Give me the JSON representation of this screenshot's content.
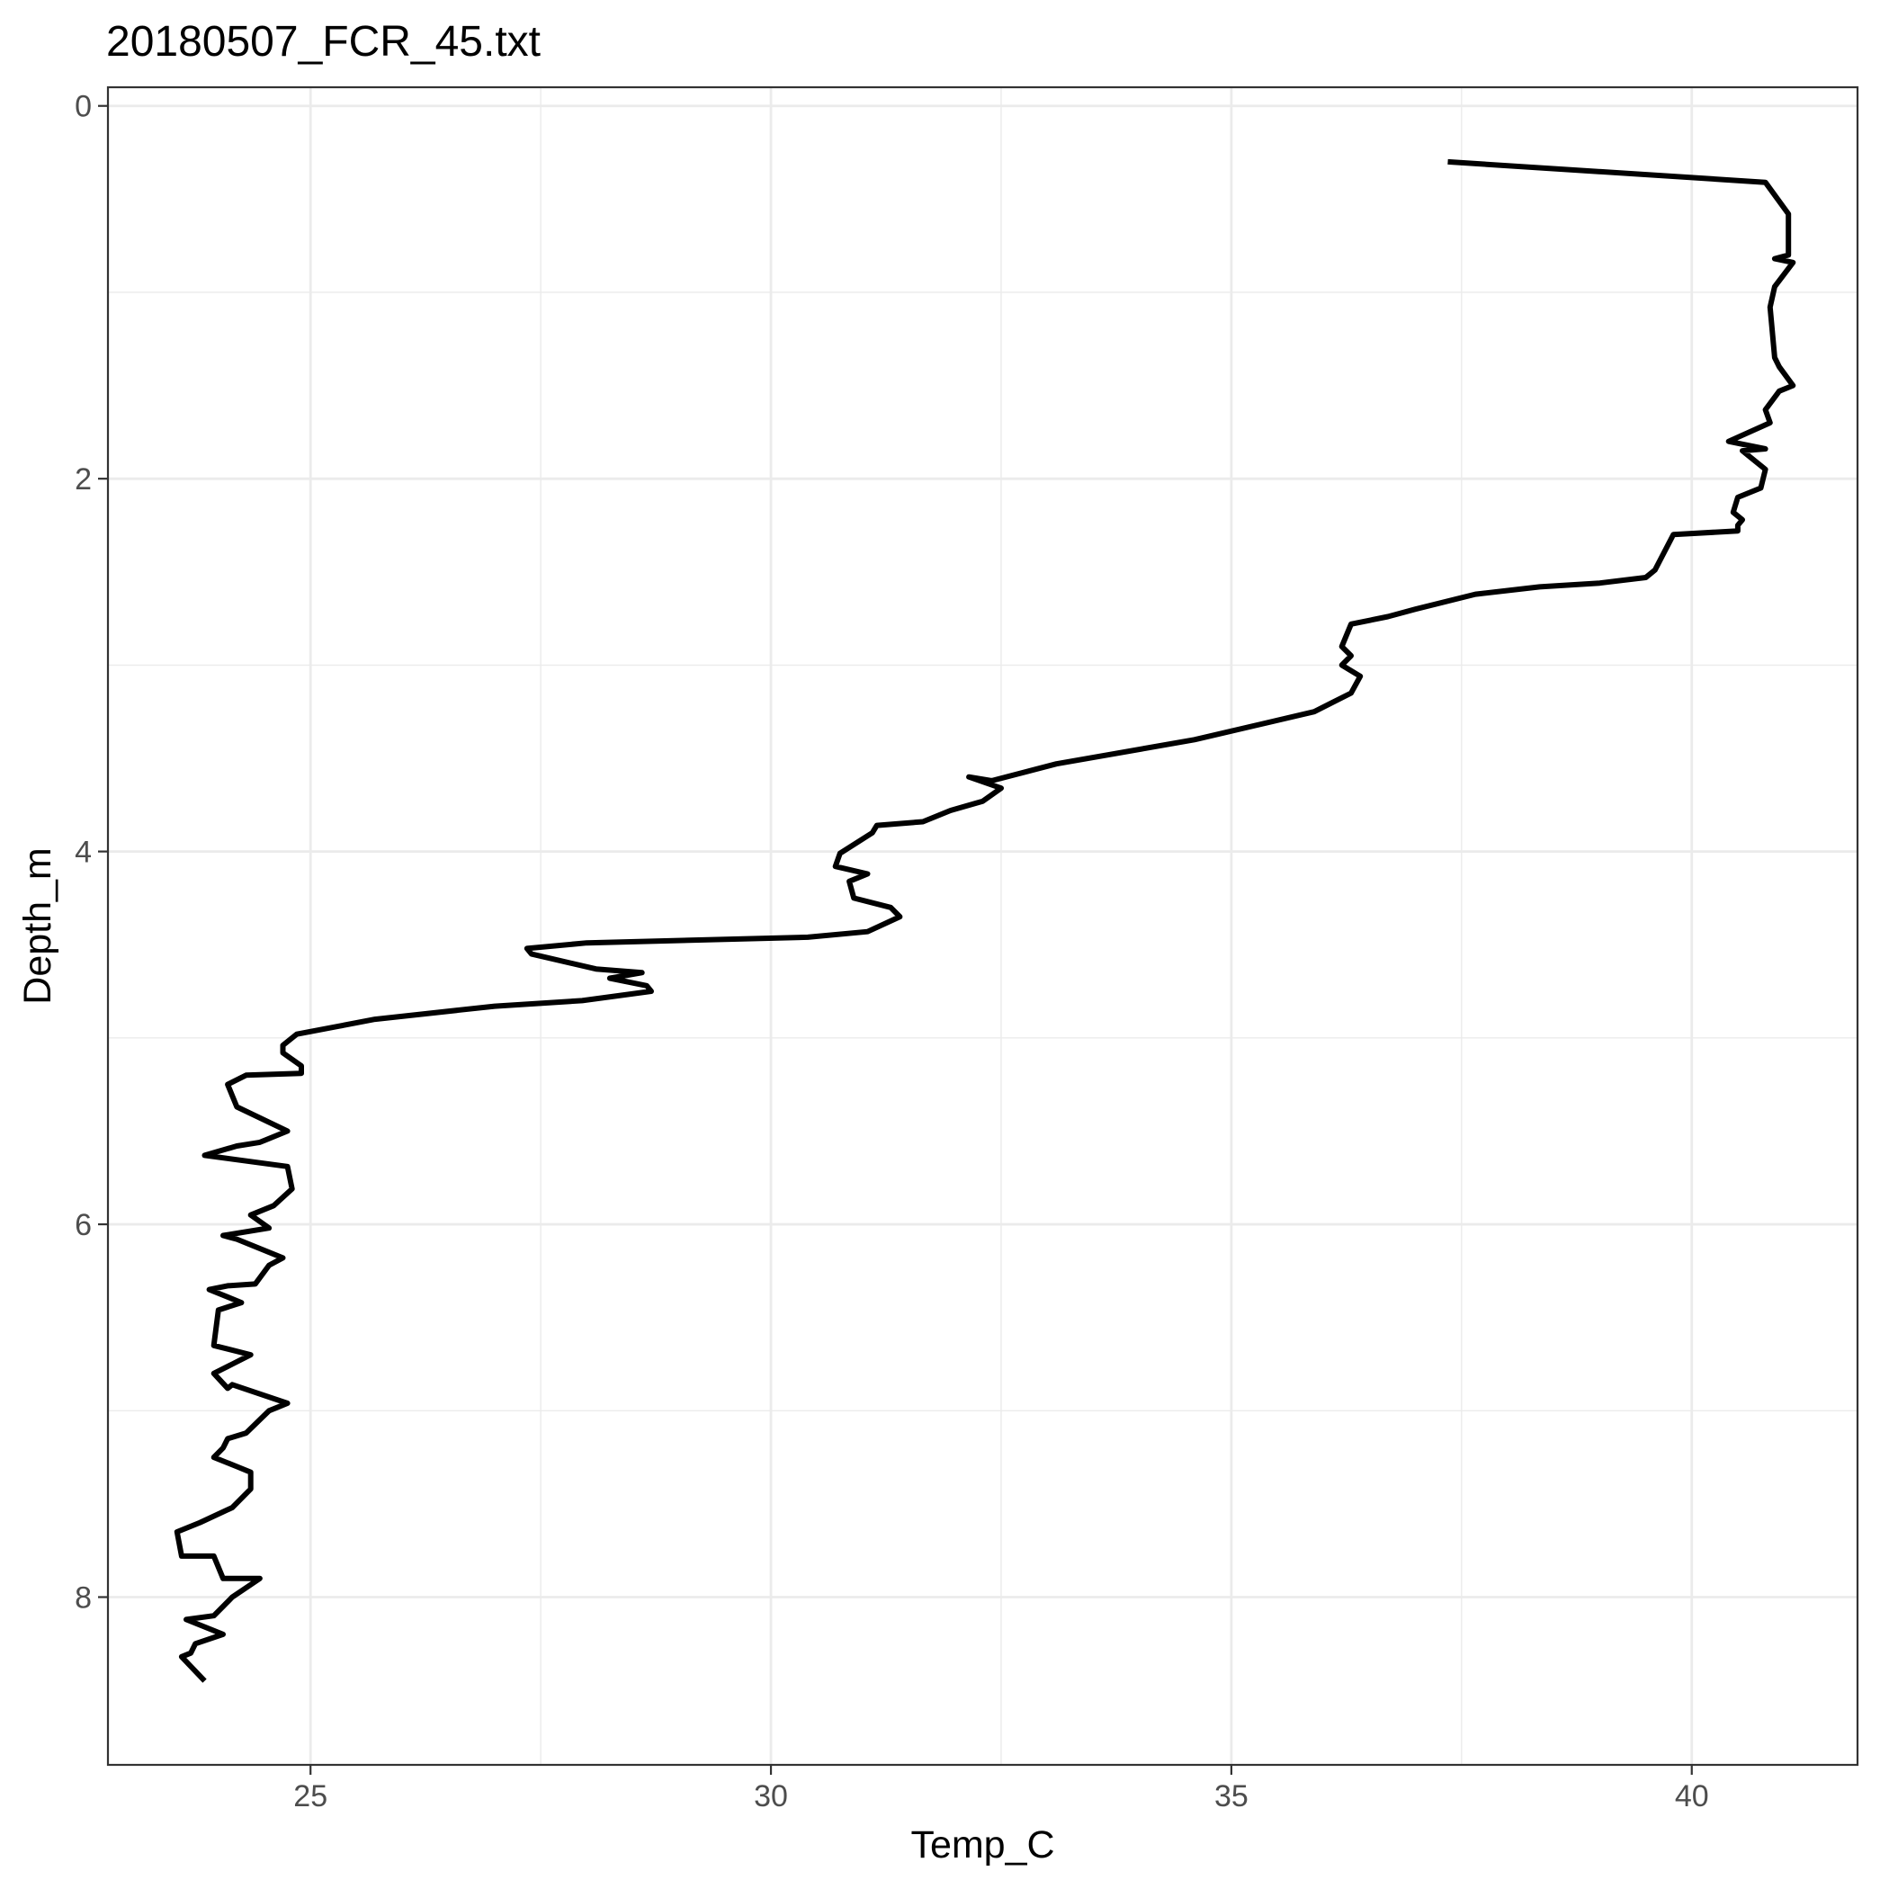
{
  "chart_data": {
    "type": "line",
    "title": "20180507_FCR_45.txt",
    "xlabel": "Temp_C",
    "ylabel": "Depth_m",
    "xlim": [
      22.8,
      41.8
    ],
    "ylim": [
      8.9,
      -0.1
    ],
    "y_reversed": true,
    "x_ticks": [
      25,
      30,
      35,
      40
    ],
    "x_tick_labels": [
      "25",
      "30",
      "35",
      "40"
    ],
    "y_ticks": [
      0,
      2,
      4,
      6,
      8
    ],
    "y_tick_labels": [
      "0",
      "2",
      "4",
      "6",
      "8"
    ],
    "grid": true,
    "legend": "none",
    "line_color": "#000000",
    "series": [
      {
        "x": [
          37.35,
          40.8,
          41.05,
          41.05,
          40.9,
          41.1,
          40.9,
          40.85,
          40.9,
          40.95,
          41.1,
          40.95,
          40.8,
          40.85,
          40.4,
          40.8,
          40.55,
          40.8,
          40.75,
          40.5,
          40.45,
          40.55,
          40.5,
          40.5,
          39.8,
          39.6,
          39.5,
          39.0,
          38.35,
          37.65,
          37.0,
          36.7,
          36.3,
          36.2,
          36.3,
          36.2,
          36.4,
          36.3,
          36.1,
          35.9,
          34.6,
          33.1,
          32.4,
          32.15,
          32.5,
          32.3,
          31.95,
          31.65,
          31.15,
          31.1,
          30.75,
          30.7,
          31.05,
          30.85,
          30.9,
          31.3,
          31.4,
          31.05,
          30.4,
          28.0,
          27.35,
          27.4,
          28.1,
          28.6,
          28.25,
          28.65,
          28.7,
          27.95,
          27.0,
          25.7,
          24.85,
          24.7,
          24.7,
          24.9,
          24.9,
          24.3,
          24.1,
          24.2,
          24.75,
          24.45,
          24.2,
          23.85,
          24.75,
          24.8,
          24.6,
          24.35,
          24.55,
          24.05,
          24.2,
          24.7,
          24.55,
          24.4,
          24.1,
          23.9,
          24.25,
          24.0,
          23.95,
          24.35,
          24.15,
          23.95,
          24.1,
          24.15,
          24.75,
          24.55,
          24.3,
          24.1,
          24.05,
          23.95,
          24.2,
          24.35,
          24.35,
          24.15,
          23.8,
          23.55,
          23.6,
          23.95,
          24.05,
          24.45,
          24.15,
          24.05,
          23.95,
          23.65,
          24.05,
          23.75,
          23.7,
          23.6,
          23.85
        ],
        "y": [
          0.3,
          0.41,
          0.58,
          0.8,
          0.82,
          0.84,
          0.97,
          1.08,
          1.35,
          1.4,
          1.5,
          1.53,
          1.63,
          1.7,
          1.8,
          1.84,
          1.85,
          1.95,
          2.05,
          2.1,
          2.18,
          2.22,
          2.25,
          2.28,
          2.3,
          2.49,
          2.53,
          2.56,
          2.58,
          2.62,
          2.7,
          2.74,
          2.78,
          2.9,
          2.95,
          3.0,
          3.06,
          3.15,
          3.2,
          3.25,
          3.4,
          3.53,
          3.62,
          3.6,
          3.66,
          3.73,
          3.78,
          3.84,
          3.86,
          3.9,
          4.01,
          4.08,
          4.12,
          4.16,
          4.25,
          4.3,
          4.35,
          4.43,
          4.46,
          4.49,
          4.52,
          4.55,
          4.63,
          4.65,
          4.68,
          4.72,
          4.75,
          4.8,
          4.83,
          4.9,
          4.98,
          5.04,
          5.08,
          5.15,
          5.19,
          5.2,
          5.25,
          5.37,
          5.5,
          5.56,
          5.58,
          5.63,
          5.69,
          5.81,
          5.9,
          5.95,
          6.02,
          6.06,
          6.08,
          6.18,
          6.22,
          6.32,
          6.33,
          6.35,
          6.42,
          6.46,
          6.65,
          6.7,
          6.75,
          6.8,
          6.88,
          6.86,
          6.96,
          7.0,
          7.12,
          7.15,
          7.2,
          7.25,
          7.3,
          7.33,
          7.42,
          7.52,
          7.6,
          7.65,
          7.78,
          7.78,
          7.9,
          7.9,
          8.0,
          8.05,
          8.1,
          8.12,
          8.2,
          8.25,
          8.3,
          8.32,
          8.45
        ]
      }
    ]
  }
}
